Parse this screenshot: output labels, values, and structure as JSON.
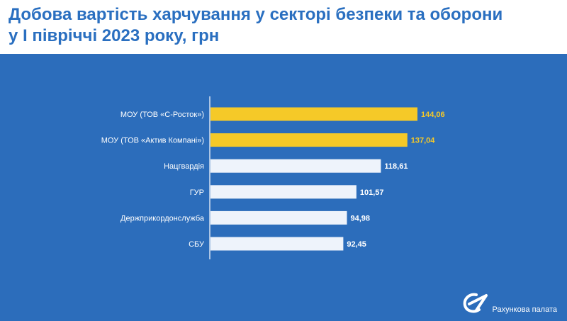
{
  "page": {
    "title_line1": "Добова вартість харчування у секторі безпеки та оборони",
    "title_line2": "у І півріччі 2023 року, грн"
  },
  "logo": {
    "text": "Рахункова палата",
    "icon": "chamber-logo-icon"
  },
  "colors": {
    "background": "#2c6dbb",
    "highlight": "#f5c928",
    "bar": "#eef3fb",
    "title": "#2a6fc0"
  },
  "chart_data": {
    "type": "bar",
    "orientation": "horizontal",
    "title": "Добова вартість харчування у секторі безпеки та оборони у І півріччі 2023 року, грн",
    "categories": [
      "МОУ (ТОВ «С-Росток»)",
      "МОУ (ТОВ «Актив Компані»)",
      "Нацгвардія",
      "ГУР",
      "Держприкордонслужба",
      "СБУ"
    ],
    "values": [
      144.06,
      137.04,
      118.61,
      101.57,
      94.98,
      92.45
    ],
    "value_labels": [
      "144,06",
      "137,04",
      "118,61",
      "101,57",
      "94,98",
      "92,45"
    ],
    "highlighted": [
      true,
      true,
      false,
      false,
      false,
      false
    ],
    "xlim": [
      0,
      144.06
    ],
    "grid": false,
    "legend": "none"
  }
}
